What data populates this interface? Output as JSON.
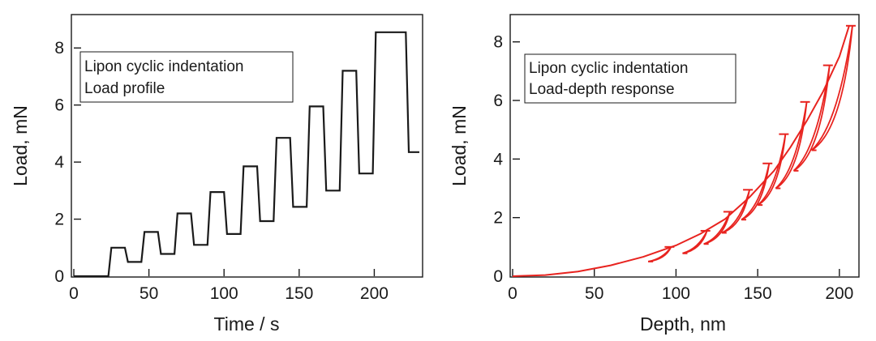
{
  "chart_data": [
    {
      "type": "line",
      "xlabel": "Time / s",
      "ylabel": "Load, mN",
      "xlim": [
        0,
        230
      ],
      "ylim": [
        0,
        9
      ],
      "xticks": [
        "0",
        "50",
        "100",
        "150",
        "200"
      ],
      "yticks": [
        "0",
        "2",
        "4",
        "6",
        "8"
      ],
      "grid": false,
      "legend_position": "top-left",
      "annotation": [
        "Lipon cyclic indentation",
        "Load profile"
      ],
      "color": "#1a1a1a",
      "series": [
        {
          "x": [
            0,
            23,
            25,
            34,
            36,
            45,
            47,
            56,
            58,
            67,
            69,
            78,
            80,
            89,
            91,
            100,
            102,
            111,
            113,
            122,
            124,
            133,
            135,
            144,
            146,
            155,
            157,
            166,
            168,
            177,
            179,
            188,
            190,
            199,
            201,
            210,
            212,
            221,
            223,
            229,
            230
          ],
          "y": [
            0,
            0,
            1.0,
            1.0,
            0.5,
            0.5,
            1.55,
            1.55,
            0.78,
            0.78,
            2.2,
            2.2,
            1.1,
            1.1,
            2.95,
            2.95,
            1.48,
            1.48,
            3.85,
            3.85,
            1.93,
            1.93,
            4.85,
            4.85,
            2.43,
            2.43,
            5.95,
            5.95,
            3.0,
            3.0,
            7.2,
            7.2,
            3.6,
            3.6,
            8.55,
            8.55,
            8.55,
            8.55,
            4.35,
            4.35,
            4.35
          ]
        }
      ]
    },
    {
      "type": "line",
      "xlabel": "Depth, nm",
      "ylabel": "Load, mN",
      "xlim": [
        0,
        210
      ],
      "ylim": [
        0,
        8.6
      ],
      "xticks": [
        "0",
        "50",
        "100",
        "150",
        "200"
      ],
      "yticks": [
        "0",
        "2",
        "4",
        "6",
        "8"
      ],
      "grid": false,
      "legend_position": "top-left",
      "annotation": [
        "Lipon cyclic indentation",
        "Load-depth response"
      ],
      "color": "#e8231f",
      "loading_curve": {
        "x": [
          0,
          20,
          40,
          60,
          80,
          100,
          115,
          130,
          145,
          160,
          170,
          180,
          190,
          200,
          206
        ],
        "y": [
          0,
          0.04,
          0.16,
          0.37,
          0.66,
          1.05,
          1.45,
          1.95,
          2.7,
          3.6,
          4.4,
          5.3,
          6.3,
          7.5,
          8.55
        ]
      },
      "unload_cycles": [
        {
          "peak": [
            97,
            1.0
          ],
          "end": [
            83,
            0.5
          ]
        },
        {
          "peak": [
            119,
            1.55
          ],
          "end": [
            104,
            0.78
          ]
        },
        {
          "peak": [
            133,
            2.2
          ],
          "end": [
            117,
            1.1
          ]
        },
        {
          "peak": [
            145,
            2.95
          ],
          "end": [
            128,
            1.48
          ]
        },
        {
          "peak": [
            157,
            3.85
          ],
          "end": [
            140,
            1.93
          ]
        },
        {
          "peak": [
            167,
            4.85
          ],
          "end": [
            150,
            2.43
          ]
        },
        {
          "peak": [
            180,
            5.95
          ],
          "end": [
            161,
            3.0
          ]
        },
        {
          "peak": [
            194,
            7.2
          ],
          "end": [
            172,
            3.6
          ]
        },
        {
          "peak": [
            208,
            8.55
          ],
          "end": [
            183,
            4.3
          ]
        }
      ]
    }
  ]
}
